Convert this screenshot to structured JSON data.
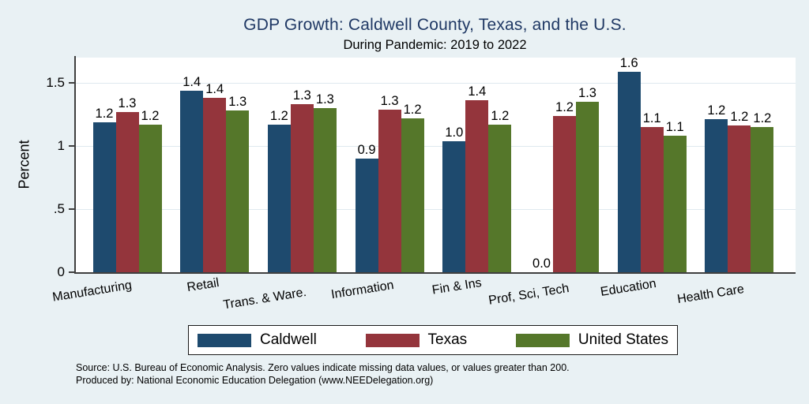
{
  "chart_data": {
    "type": "bar",
    "title": "GDP Growth: Caldwell County, Texas, and the U.S.",
    "subtitle": "During Pandemic: 2019 to 2022",
    "ylabel": "Percent",
    "xlabel": "",
    "categories": [
      "Manufacturing",
      "Retail",
      "Trans. & Ware.",
      "Information",
      "Fin & Ins",
      "Prof, Sci, Tech",
      "Education",
      "Health Care"
    ],
    "series": [
      {
        "name": "Caldwell",
        "color": "#1e4a6e",
        "values": [
          1.19,
          1.44,
          1.17,
          0.9,
          1.04,
          0.0,
          1.59,
          1.21
        ],
        "labels": [
          "1.2",
          "1.4",
          "1.2",
          "0.9",
          "1.0",
          "0.0",
          "1.6",
          "1.2"
        ]
      },
      {
        "name": "Texas",
        "color": "#94353c",
        "values": [
          1.27,
          1.38,
          1.33,
          1.29,
          1.36,
          1.24,
          1.15,
          1.16
        ],
        "labels": [
          "1.3",
          "1.4",
          "1.3",
          "1.3",
          "1.4",
          "1.2",
          "1.1",
          "1.2"
        ]
      },
      {
        "name": "United States",
        "color": "#55772a",
        "values": [
          1.17,
          1.28,
          1.3,
          1.22,
          1.17,
          1.35,
          1.08,
          1.15
        ],
        "labels": [
          "1.2",
          "1.3",
          "1.3",
          "1.2",
          "1.2",
          "1.3",
          "1.1",
          "1.2"
        ]
      }
    ],
    "yticks": [
      {
        "value": 0,
        "label": "0"
      },
      {
        "value": 0.5,
        "label": ".5"
      },
      {
        "value": 1,
        "label": "1"
      },
      {
        "value": 1.5,
        "label": "1.5"
      }
    ],
    "ylim": [
      0,
      1.7
    ],
    "grid": true,
    "legend_position": "bottom"
  },
  "footer": {
    "line1": "Source: U.S. Bureau of Economic Analysis. Zero values indicate missing data values, or values greater than 200.",
    "line2": "Produced by: National Economic Education Delegation (www.NEEDelegation.org)"
  },
  "colors": {
    "background": "#e9f1f4",
    "plot_background": "#ffffff",
    "title": "#1f3864",
    "axis": "#3f3f3f",
    "grid": "#dfe9ef"
  }
}
